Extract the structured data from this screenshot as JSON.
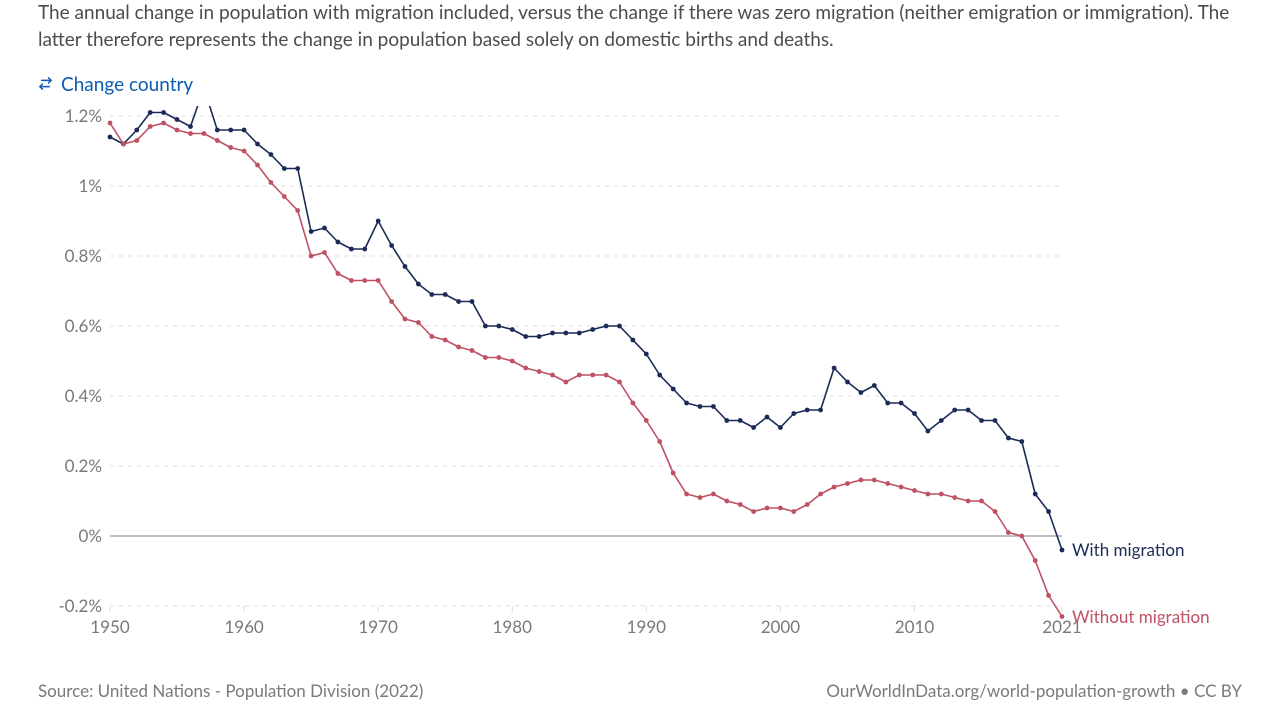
{
  "subtitle": "The annual change in population with migration included, versus the change if there was zero migration (neither emigration or immigration). The latter therefore represents the change in population based solely on domestic births and deaths.",
  "change_country_label": "Change country",
  "footer": {
    "source": "Source: United Nations - Population Division (2022)",
    "attribution": "OurWorldInData.org/world-population-growth • CC BY"
  },
  "chart": {
    "type": "line",
    "background_color": "#ffffff",
    "grid_color": "#dcdcdc",
    "zero_line_color": "#9a9a9a",
    "axis_text_color": "#797979",
    "x": {
      "min": 1950,
      "max": 2021,
      "ticks": [
        1950,
        1960,
        1970,
        1980,
        1990,
        2000,
        2010,
        2021
      ]
    },
    "y": {
      "min": -0.2,
      "max": 1.2,
      "ticks": [
        -0.2,
        0,
        0.2,
        0.4,
        0.6,
        0.8,
        1.0,
        1.2
      ],
      "tick_labels": [
        "-0.2%",
        "0%",
        "0.2%",
        "0.4%",
        "0.6%",
        "0.8%",
        "1%",
        "1.2%"
      ]
    },
    "series": [
      {
        "name": "With migration",
        "label": "With migration",
        "color": "#1b2b57",
        "line_width": 1.6,
        "marker_radius": 2.4,
        "data": [
          [
            1950,
            1.14
          ],
          [
            1951,
            1.12
          ],
          [
            1952,
            1.16
          ],
          [
            1953,
            1.21
          ],
          [
            1954,
            1.21
          ],
          [
            1955,
            1.19
          ],
          [
            1956,
            1.17
          ],
          [
            1957,
            1.28
          ],
          [
            1958,
            1.16
          ],
          [
            1959,
            1.16
          ],
          [
            1960,
            1.16
          ],
          [
            1961,
            1.12
          ],
          [
            1962,
            1.09
          ],
          [
            1963,
            1.05
          ],
          [
            1964,
            1.05
          ],
          [
            1965,
            0.87
          ],
          [
            1966,
            0.88
          ],
          [
            1967,
            0.84
          ],
          [
            1968,
            0.82
          ],
          [
            1969,
            0.82
          ],
          [
            1970,
            0.9
          ],
          [
            1971,
            0.83
          ],
          [
            1972,
            0.77
          ],
          [
            1973,
            0.72
          ],
          [
            1974,
            0.69
          ],
          [
            1975,
            0.69
          ],
          [
            1976,
            0.67
          ],
          [
            1977,
            0.67
          ],
          [
            1978,
            0.6
          ],
          [
            1979,
            0.6
          ],
          [
            1980,
            0.59
          ],
          [
            1981,
            0.57
          ],
          [
            1982,
            0.57
          ],
          [
            1983,
            0.58
          ],
          [
            1984,
            0.58
          ],
          [
            1985,
            0.58
          ],
          [
            1986,
            0.59
          ],
          [
            1987,
            0.6
          ],
          [
            1988,
            0.6
          ],
          [
            1989,
            0.56
          ],
          [
            1990,
            0.52
          ],
          [
            1991,
            0.46
          ],
          [
            1992,
            0.42
          ],
          [
            1993,
            0.38
          ],
          [
            1994,
            0.37
          ],
          [
            1995,
            0.37
          ],
          [
            1996,
            0.33
          ],
          [
            1997,
            0.33
          ],
          [
            1998,
            0.31
          ],
          [
            1999,
            0.34
          ],
          [
            2000,
            0.31
          ],
          [
            2001,
            0.35
          ],
          [
            2002,
            0.36
          ],
          [
            2003,
            0.36
          ],
          [
            2004,
            0.48
          ],
          [
            2005,
            0.44
          ],
          [
            2006,
            0.41
          ],
          [
            2007,
            0.43
          ],
          [
            2008,
            0.38
          ],
          [
            2009,
            0.38
          ],
          [
            2010,
            0.35
          ],
          [
            2011,
            0.3
          ],
          [
            2012,
            0.33
          ],
          [
            2013,
            0.36
          ],
          [
            2014,
            0.36
          ],
          [
            2015,
            0.33
          ],
          [
            2016,
            0.33
          ],
          [
            2017,
            0.28
          ],
          [
            2018,
            0.27
          ],
          [
            2019,
            0.12
          ],
          [
            2020,
            0.07
          ],
          [
            2021,
            -0.04
          ]
        ]
      },
      {
        "name": "Without migration",
        "label": "Without migration",
        "color": "#be5162",
        "line_width": 1.6,
        "marker_radius": 2.4,
        "data": [
          [
            1950,
            1.18
          ],
          [
            1951,
            1.12
          ],
          [
            1952,
            1.13
          ],
          [
            1953,
            1.17
          ],
          [
            1954,
            1.18
          ],
          [
            1955,
            1.16
          ],
          [
            1956,
            1.15
          ],
          [
            1957,
            1.15
          ],
          [
            1958,
            1.13
          ],
          [
            1959,
            1.11
          ],
          [
            1960,
            1.1
          ],
          [
            1961,
            1.06
          ],
          [
            1962,
            1.01
          ],
          [
            1963,
            0.97
          ],
          [
            1964,
            0.93
          ],
          [
            1965,
            0.8
          ],
          [
            1966,
            0.81
          ],
          [
            1967,
            0.75
          ],
          [
            1968,
            0.73
          ],
          [
            1969,
            0.73
          ],
          [
            1970,
            0.73
          ],
          [
            1971,
            0.67
          ],
          [
            1972,
            0.62
          ],
          [
            1973,
            0.61
          ],
          [
            1974,
            0.57
          ],
          [
            1975,
            0.56
          ],
          [
            1976,
            0.54
          ],
          [
            1977,
            0.53
          ],
          [
            1978,
            0.51
          ],
          [
            1979,
            0.51
          ],
          [
            1980,
            0.5
          ],
          [
            1981,
            0.48
          ],
          [
            1982,
            0.47
          ],
          [
            1983,
            0.46
          ],
          [
            1984,
            0.44
          ],
          [
            1985,
            0.46
          ],
          [
            1986,
            0.46
          ],
          [
            1987,
            0.46
          ],
          [
            1988,
            0.44
          ],
          [
            1989,
            0.38
          ],
          [
            1990,
            0.33
          ],
          [
            1991,
            0.27
          ],
          [
            1992,
            0.18
          ],
          [
            1993,
            0.12
          ],
          [
            1994,
            0.11
          ],
          [
            1995,
            0.12
          ],
          [
            1996,
            0.1
          ],
          [
            1997,
            0.09
          ],
          [
            1998,
            0.07
          ],
          [
            1999,
            0.08
          ],
          [
            2000,
            0.08
          ],
          [
            2001,
            0.07
          ],
          [
            2002,
            0.09
          ],
          [
            2003,
            0.12
          ],
          [
            2004,
            0.14
          ],
          [
            2005,
            0.15
          ],
          [
            2006,
            0.16
          ],
          [
            2007,
            0.16
          ],
          [
            2008,
            0.15
          ],
          [
            2009,
            0.14
          ],
          [
            2010,
            0.13
          ],
          [
            2011,
            0.12
          ],
          [
            2012,
            0.12
          ],
          [
            2013,
            0.11
          ],
          [
            2014,
            0.1
          ],
          [
            2015,
            0.1
          ],
          [
            2016,
            0.07
          ],
          [
            2017,
            0.01
          ],
          [
            2018,
            0.0
          ],
          [
            2019,
            -0.07
          ],
          [
            2020,
            -0.17
          ],
          [
            2021,
            -0.23
          ]
        ]
      }
    ]
  }
}
